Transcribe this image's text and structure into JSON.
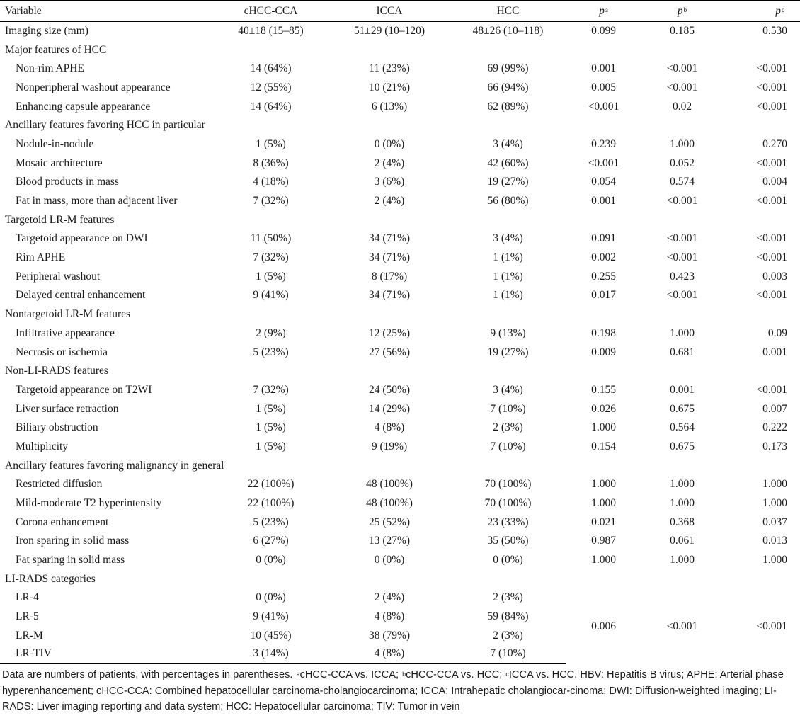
{
  "header": {
    "variable": "Variable",
    "col1": "cHCC-CCA",
    "col2": "ICCA",
    "col3": "HCC",
    "p_letter": "p",
    "p1_sup": "a",
    "p2_sup": "b",
    "p3_sup": "c"
  },
  "rows": [
    {
      "label": "Imaging size (mm)",
      "indent": false,
      "c1": "40±18 (15–85)",
      "c2": "51±29 (10–120)",
      "c3": "48±26 (10–118)",
      "p1": "0.099",
      "p2": "0.185",
      "p3": "0.530"
    },
    {
      "label": "Major features of HCC",
      "indent": false,
      "c1": "",
      "c2": "",
      "c3": "",
      "p1": "",
      "p2": "",
      "p3": ""
    },
    {
      "label": "Non-rim APHE",
      "indent": true,
      "c1": "14 (64%)",
      "c2": "11 (23%)",
      "c3": "69 (99%)",
      "p1": "0.001",
      "p2": "<0.001",
      "p3": "<0.001"
    },
    {
      "label": "Nonperipheral washout appearance",
      "indent": true,
      "c1": "12 (55%)",
      "c2": "10 (21%)",
      "c3": "66 (94%)",
      "p1": "0.005",
      "p2": "<0.001",
      "p3": "<0.001"
    },
    {
      "label": "Enhancing capsule appearance",
      "indent": true,
      "c1": "14 (64%)",
      "c2": "6 (13%)",
      "c3": "62 (89%)",
      "p1": "<0.001",
      "p2": "0.02",
      "p3": "<0.001"
    },
    {
      "label": "Ancillary features favoring HCC in particular",
      "indent": false,
      "c1": "",
      "c2": "",
      "c3": "",
      "p1": "",
      "p2": "",
      "p3": ""
    },
    {
      "label": "Nodule-in-nodule",
      "indent": true,
      "c1": "1 (5%)",
      "c2": "0 (0%)",
      "c3": "3 (4%)",
      "p1": "0.239",
      "p2": "1.000",
      "p3": "0.270"
    },
    {
      "label": "Mosaic architecture",
      "indent": true,
      "c1": "8 (36%)",
      "c2": "2 (4%)",
      "c3": "42 (60%)",
      "p1": "<0.001",
      "p2": "0.052",
      "p3": "<0.001"
    },
    {
      "label": "Blood products in mass",
      "indent": true,
      "c1": "4 (18%)",
      "c2": "3 (6%)",
      "c3": "19 (27%)",
      "p1": "0.054",
      "p2": "0.574",
      "p3": "0.004"
    },
    {
      "label": "Fat in mass, more than adjacent liver",
      "indent": true,
      "c1": "7 (32%)",
      "c2": "2 (4%)",
      "c3": "56 (80%)",
      "p1": "0.001",
      "p2": "<0.001",
      "p3": "<0.001"
    },
    {
      "label": "Targetoid LR-M features",
      "indent": false,
      "c1": "",
      "c2": "",
      "c3": "",
      "p1": "",
      "p2": "",
      "p3": ""
    },
    {
      "label": "Targetoid appearance on DWI",
      "indent": true,
      "c1": "11 (50%)",
      "c2": "34 (71%)",
      "c3": "3 (4%)",
      "p1": "0.091",
      "p2": "<0.001",
      "p3": "<0.001"
    },
    {
      "label": "Rim APHE",
      "indent": true,
      "c1": "7 (32%)",
      "c2": "34 (71%)",
      "c3": "1 (1%)",
      "p1": "0.002",
      "p2": "<0.001",
      "p3": "<0.001"
    },
    {
      "label": "Peripheral washout",
      "indent": true,
      "c1": "1 (5%)",
      "c2": "8 (17%)",
      "c3": "1 (1%)",
      "p1": "0.255",
      "p2": "0.423",
      "p3": "0.003"
    },
    {
      "label": "Delayed central enhancement",
      "indent": true,
      "c1": "9 (41%)",
      "c2": "34 (71%)",
      "c3": "1 (1%)",
      "p1": "0.017",
      "p2": "<0.001",
      "p3": "<0.001"
    },
    {
      "label": "Nontargetoid LR-M features",
      "indent": false,
      "c1": "",
      "c2": "",
      "c3": "",
      "p1": "",
      "p2": "",
      "p3": ""
    },
    {
      "label": "Infiltrative appearance",
      "indent": true,
      "c1": "2 (9%)",
      "c2": "12 (25%)",
      "c3": "9 (13%)",
      "p1": "0.198",
      "p2": "1.000",
      "p3": "0.09"
    },
    {
      "label": "Necrosis or ischemia",
      "indent": true,
      "c1": "5 (23%)",
      "c2": "27 (56%)",
      "c3": "19 (27%)",
      "p1": "0.009",
      "p2": "0.681",
      "p3": "0.001"
    },
    {
      "label": "Non-LI-RADS features",
      "indent": false,
      "c1": "",
      "c2": "",
      "c3": "",
      "p1": "",
      "p2": "",
      "p3": ""
    },
    {
      "label": "Targetoid appearance on T2WI",
      "indent": true,
      "c1": "7 (32%)",
      "c2": "24 (50%)",
      "c3": "3 (4%)",
      "p1": "0.155",
      "p2": "0.001",
      "p3": "<0.001"
    },
    {
      "label": "Liver surface retraction",
      "indent": true,
      "c1": "1 (5%)",
      "c2": "14 (29%)",
      "c3": "7 (10%)",
      "p1": "0.026",
      "p2": "0.675",
      "p3": "0.007"
    },
    {
      "label": "Biliary obstruction",
      "indent": true,
      "c1": "1 (5%)",
      "c2": "4 (8%)",
      "c3": "2 (3%)",
      "p1": "1.000",
      "p2": "0.564",
      "p3": "0.222"
    },
    {
      "label": "Multiplicity",
      "indent": true,
      "c1": "1 (5%)",
      "c2": "9 (19%)",
      "c3": "7 (10%)",
      "p1": "0.154",
      "p2": "0.675",
      "p3": "0.173"
    },
    {
      "label": "Ancillary features favoring malignancy in general",
      "indent": false,
      "c1": "",
      "c2": "",
      "c3": "",
      "p1": "",
      "p2": "",
      "p3": ""
    },
    {
      "label": "Restricted diffusion",
      "indent": true,
      "c1": "22 (100%)",
      "c2": "48 (100%)",
      "c3": "70 (100%)",
      "p1": "1.000",
      "p2": "1.000",
      "p3": "1.000"
    },
    {
      "label": "Mild-moderate T2 hyperintensity",
      "indent": true,
      "c1": "22 (100%)",
      "c2": "48 (100%)",
      "c3": "70 (100%)",
      "p1": "1.000",
      "p2": "1.000",
      "p3": "1.000"
    },
    {
      "label": "Corona enhancement",
      "indent": true,
      "c1": "5 (23%)",
      "c2": "25 (52%)",
      "c3": "23 (33%)",
      "p1": "0.021",
      "p2": "0.368",
      "p3": "0.037"
    },
    {
      "label": "Iron sparing in solid mass",
      "indent": true,
      "c1": "6 (27%)",
      "c2": "13 (27%)",
      "c3": "35 (50%)",
      "p1": "0.987",
      "p2": "0.061",
      "p3": "0.013"
    },
    {
      "label": "Fat sparing in solid mass",
      "indent": true,
      "c1": "0 (0%)",
      "c2": "0 (0%)",
      "c3": "0 (0%)",
      "p1": "1.000",
      "p2": "1.000",
      "p3": "1.000"
    },
    {
      "label": "LI-RADS categories",
      "indent": false,
      "c1": "",
      "c2": "",
      "c3": "",
      "p1": "",
      "p2": "",
      "p3": ""
    }
  ],
  "lirads": {
    "rows": [
      {
        "label": "LR-4",
        "c1": "0 (0%)",
        "c2": "2 (4%)",
        "c3": "2 (3%)"
      },
      {
        "label": "LR-5",
        "c1": "9 (41%)",
        "c2": "4 (8%)",
        "c3": "59 (84%)"
      },
      {
        "label": "LR-M",
        "c1": "10 (45%)",
        "c2": "38 (79%)",
        "c3": "2 (3%)"
      },
      {
        "label": "LR-TIV",
        "c1": "3 (14%)",
        "c2": "4 (8%)",
        "c3": "7 (10%)"
      }
    ],
    "p1": "0.006",
    "p2": "<0.001",
    "p3": "<0.001"
  },
  "footnote": {
    "line_start": "Data are numbers of patients, with percentages in parentheses. ",
    "sup_a": "a",
    "text_a": "cHCC-CCA vs. ICCA; ",
    "sup_b": "b",
    "text_b": "cHCC-CCA vs. HCC; ",
    "sup_c": "c",
    "text_c": "ICCA vs. HCC. HBV: Hepatitis B virus; APHE: Arterial phase hyperenhancement; cHCC-CCA: Combined hepatocellular carcinoma-cholangiocarcinoma; ICCA: Intrahepatic cholangiocar-cinoma; DWI: Diffusion-weighted imaging; LI-RADS: Liver imaging reporting and data system; HCC: Hepatocellular carcinoma; TIV: Tumor in vein"
  }
}
